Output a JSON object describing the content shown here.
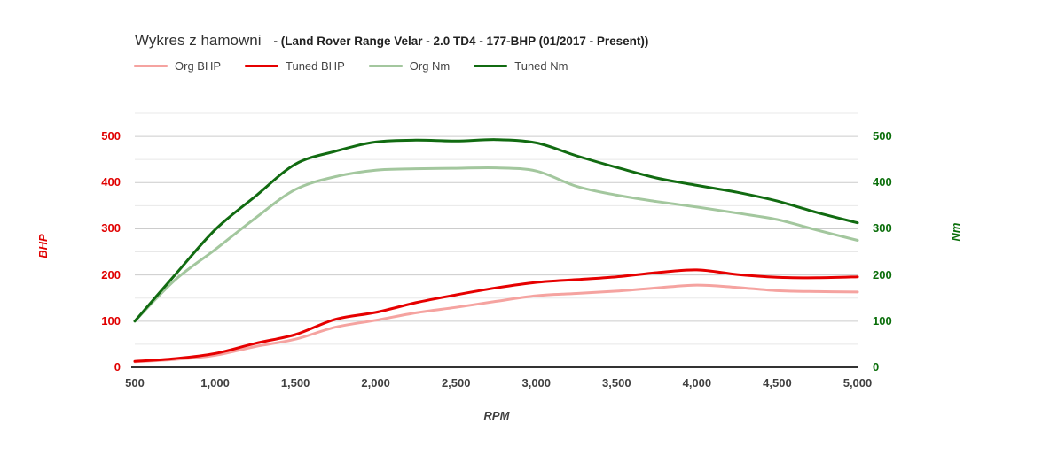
{
  "chart_data": {
    "type": "line",
    "title": "Wykres z hamowni",
    "subtitle": "- (Land Rover Range Velar - 2.0 TD4 - 177-BHP (01/2017 - Present))",
    "xlabel": "RPM",
    "ylabel_left": "BHP",
    "ylabel_right": "Nm",
    "legend_position": "top",
    "grid": "horizontal-only",
    "xlim": [
      500,
      5000
    ],
    "ylim": [
      0,
      550
    ],
    "grid_step": 50,
    "x_tick_values": [
      500,
      1000,
      1500,
      2000,
      2500,
      3000,
      3500,
      4000,
      4500,
      5000
    ],
    "x_tick_labels": [
      "500",
      "1,000",
      "1,500",
      "2,000",
      "2,500",
      "3,000",
      "3,500",
      "4,000",
      "4,500",
      "5,000"
    ],
    "y_tick_values": [
      0,
      100,
      200,
      300,
      400,
      500
    ],
    "y_tick_labels": [
      "0",
      "100",
      "200",
      "300",
      "400",
      "500"
    ],
    "colors": {
      "left_axis": "#e00000",
      "right_axis": "#0a6e0a",
      "x_axis_text": "#404040",
      "grid_major": "#cccccc",
      "grid_minor": "#e8e8e8",
      "baseline": "#333333"
    },
    "x": [
      500,
      750,
      1000,
      1250,
      1500,
      1750,
      2000,
      2250,
      2500,
      2750,
      3000,
      3250,
      3500,
      3750,
      4000,
      4250,
      4500,
      4750,
      5000
    ],
    "series": [
      {
        "name": "Org BHP",
        "axis": "left",
        "color": "#f5a3a0",
        "values": [
          12,
          17,
          26,
          45,
          61,
          87,
          102,
          118,
          130,
          143,
          155,
          160,
          165,
          172,
          178,
          173,
          166,
          164,
          163
        ]
      },
      {
        "name": "Tuned BHP",
        "axis": "left",
        "color": "#e60000",
        "values": [
          13,
          19,
          30,
          52,
          71,
          104,
          119,
          140,
          157,
          172,
          184,
          190,
          196,
          205,
          211,
          201,
          195,
          194,
          196
        ]
      },
      {
        "name": "Org Nm",
        "axis": "right",
        "color": "#a3c79e",
        "values": [
          100,
          189,
          255,
          323,
          385,
          413,
          427,
          430,
          431,
          432,
          425,
          392,
          373,
          359,
          347,
          334,
          320,
          297,
          275
        ]
      },
      {
        "name": "Tuned Nm",
        "axis": "right",
        "color": "#116b11",
        "values": [
          100,
          200,
          298,
          370,
          440,
          468,
          488,
          492,
          490,
          493,
          486,
          458,
          433,
          410,
          394,
          379,
          360,
          335,
          313
        ]
      }
    ]
  }
}
